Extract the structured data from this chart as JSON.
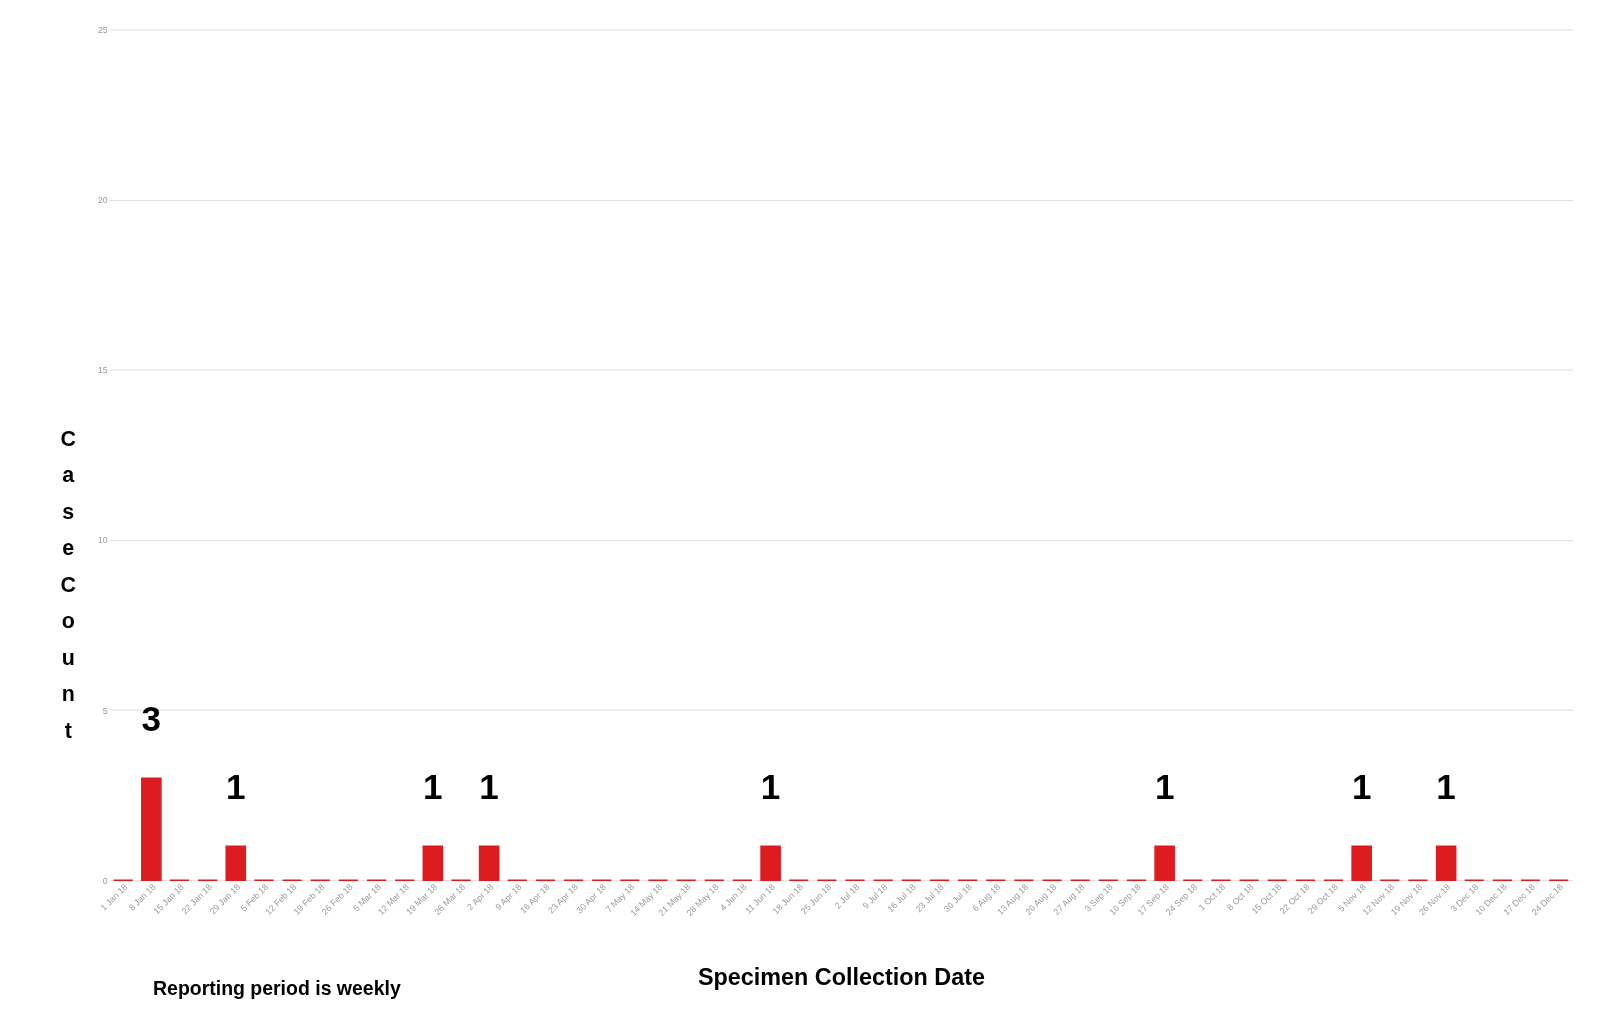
{
  "chart_data": {
    "type": "bar",
    "xlabel": "Specimen Collection Date",
    "ylabel": "Case Count",
    "annotations": [
      "Reporting period is weekly"
    ],
    "categories": [
      "1 Jan 18",
      "8 Jan 18",
      "15 Jan 18",
      "22 Jan 18",
      "29 Jan 18",
      "5 Feb 18",
      "12 Feb 18",
      "19 Feb 18",
      "26 Feb 18",
      "5 Mar 18",
      "12 Mar 18",
      "19 Mar 18",
      "26 Mar 18",
      "2 Apr 18",
      "9 Apr 18",
      "16 Apr 18",
      "23 Apr 18",
      "30 Apr 18",
      "7 May 18",
      "14 May 18",
      "21 May 18",
      "28 May 18",
      "4 Jun 18",
      "11 Jun 18",
      "18 Jun 18",
      "25 Jun 18",
      "2 Jul 18",
      "9 Jul 18",
      "16 Jul 18",
      "23 Jul 18",
      "30 Jul 18",
      "6 Aug 18",
      "13 Aug 18",
      "20 Aug 18",
      "27 Aug 18",
      "3 Sep 18",
      "10 Sep 18",
      "17 Sep 18",
      "24 Sep 18",
      "1 Oct 18",
      "8 Oct 18",
      "15 Oct 18",
      "22 Oct 18",
      "29 Oct 18",
      "5 Nov 18",
      "12 Nov 18",
      "19 Nov 18",
      "26 Nov 18",
      "3 Dec 18",
      "10 Dec 18",
      "17 Dec 18",
      "24 Dec 18"
    ],
    "values": [
      0,
      3,
      0,
      0,
      1,
      0,
      0,
      0,
      0,
      0,
      0,
      1,
      0,
      1,
      0,
      0,
      0,
      0,
      0,
      0,
      0,
      0,
      0,
      1,
      0,
      0,
      0,
      0,
      0,
      0,
      0,
      0,
      0,
      0,
      0,
      0,
      0,
      1,
      0,
      0,
      0,
      0,
      0,
      0,
      1,
      0,
      0,
      1,
      0,
      0,
      0,
      0
    ],
    "value_labels": [
      null,
      "3",
      null,
      null,
      "1",
      null,
      null,
      null,
      null,
      null,
      null,
      "1",
      null,
      "1",
      null,
      null,
      null,
      null,
      null,
      null,
      null,
      null,
      null,
      "1",
      null,
      null,
      null,
      null,
      null,
      null,
      null,
      null,
      null,
      null,
      null,
      null,
      null,
      "1",
      null,
      null,
      null,
      null,
      null,
      null,
      "1",
      null,
      null,
      "1",
      null,
      null,
      null,
      null
    ],
    "color": "#dd1c1f",
    "ylim": [
      0,
      25
    ],
    "yticks": [
      0,
      5,
      10,
      15,
      20,
      25
    ],
    "grid": "y"
  }
}
